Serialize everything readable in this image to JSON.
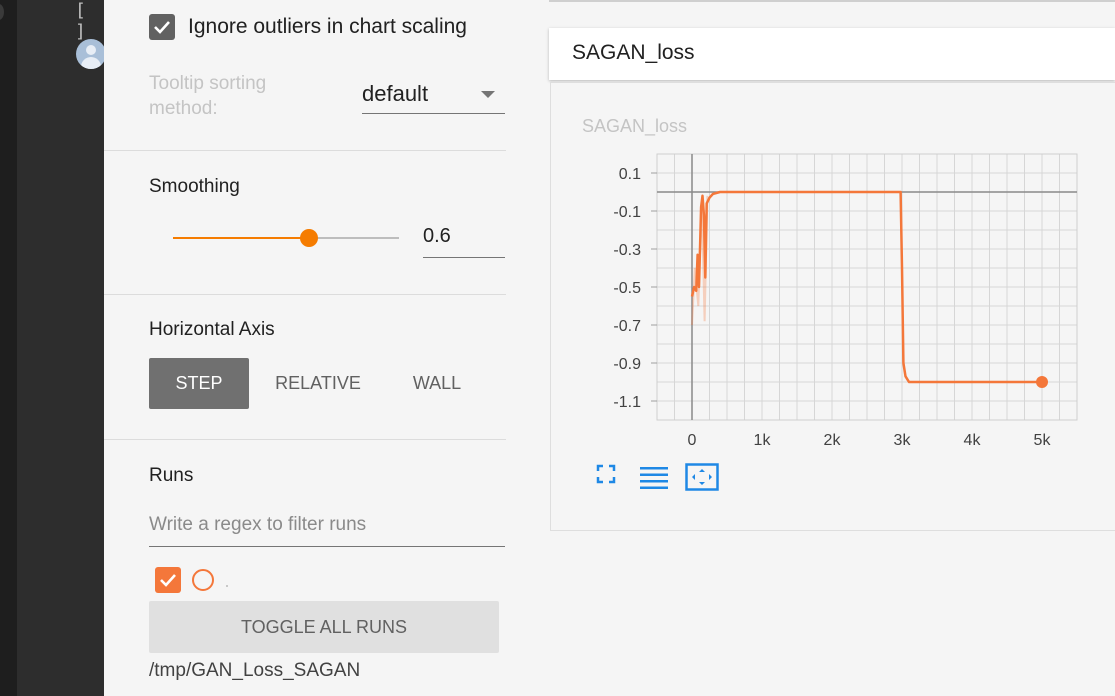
{
  "left_rail": {
    "brackets_label": "[ ]",
    "avatar_icon": "account-circle-icon"
  },
  "settings": {
    "ignore_outliers": {
      "label": "Ignore outliers in chart scaling",
      "checked": true
    },
    "tooltip_sorting": {
      "label": "Tooltip sorting method:",
      "value": "default"
    },
    "smoothing": {
      "title": "Smoothing",
      "value": "0.6",
      "fraction": 0.6
    },
    "horizontal_axis": {
      "title": "Horizontal Axis",
      "options": [
        "STEP",
        "RELATIVE",
        "WALL"
      ],
      "selected": "STEP"
    },
    "runs": {
      "title": "Runs",
      "filter_placeholder": "Write a regex to filter runs",
      "toggle_all_label": "TOGGLE ALL RUNS",
      "run_color": "#f4773a",
      "run_path": "/tmp/GAN_Loss_SAGAN"
    }
  },
  "card": {
    "header_title": "SAGAN_loss",
    "chart_title": "SAGAN_loss",
    "tools": [
      "fullscreen-icon",
      "log-scale-lines-icon",
      "fit-domain-icon"
    ]
  },
  "chart_data": {
    "type": "line",
    "title": "SAGAN_loss",
    "xlabel": "",
    "ylabel": "",
    "xlim": [
      -500,
      5500
    ],
    "ylim": [
      -1.2,
      0.2
    ],
    "x_ticks": [
      "0",
      "1k",
      "2k",
      "3k",
      "4k",
      "5k"
    ],
    "y_ticks": [
      "0.1",
      "-0.1",
      "-0.3",
      "-0.5",
      "-0.7",
      "-0.9",
      "-1.1"
    ],
    "grid": true,
    "color": "#f4773a",
    "series": [
      {
        "x": [
          0,
          30,
          60,
          80,
          100,
          130,
          150,
          170,
          190,
          210,
          250,
          300,
          400,
          600,
          1000,
          2000,
          2800,
          2900,
          2980,
          3000,
          3020,
          3050,
          3100,
          3500,
          4000,
          4500,
          5000
        ],
        "values": [
          -0.55,
          -0.5,
          -0.52,
          -0.33,
          -0.5,
          -0.08,
          -0.02,
          -0.12,
          -0.45,
          -0.06,
          -0.03,
          -0.01,
          0.0,
          0.0,
          0.0,
          0.0,
          0.0,
          0.0,
          0.0,
          -0.4,
          -0.9,
          -0.97,
          -1.0,
          -1.0,
          -1.0,
          -1.0,
          -1.0
        ]
      }
    ]
  }
}
